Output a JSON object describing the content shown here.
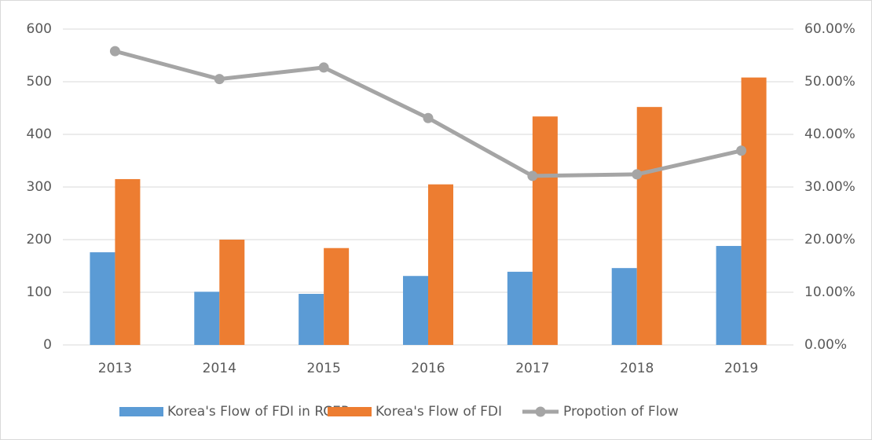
{
  "chart_data": {
    "type": "bar",
    "categories": [
      "2013",
      "2014",
      "2015",
      "2016",
      "2017",
      "2018",
      "2019"
    ],
    "series": [
      {
        "name": "Korea's Flow of FDI in RCEP",
        "color": "#5b9bd5",
        "values": [
          176,
          101,
          97,
          131,
          139,
          146,
          188
        ]
      },
      {
        "name": "Korea's Flow of FDI",
        "color": "#ed7d31",
        "values": [
          315,
          200,
          184,
          305,
          434,
          452,
          508
        ]
      },
      {
        "name": "Propotion of Flow",
        "color": "#a5a5a5",
        "type": "line",
        "axis": "y2",
        "values": [
          55.8,
          50.5,
          52.7,
          43.1,
          32.1,
          32.4,
          36.9
        ]
      }
    ],
    "ylim": [
      0,
      600
    ],
    "yticks": [
      0,
      100,
      200,
      300,
      400,
      500,
      600
    ],
    "y2lim": [
      0,
      60
    ],
    "y2ticks": [
      {
        "value": 0,
        "label": "0.00%"
      },
      {
        "value": 10,
        "label": "10.00%"
      },
      {
        "value": 20,
        "label": "20.00%"
      },
      {
        "value": 30,
        "label": "30.00%"
      },
      {
        "value": 40,
        "label": "40.00%"
      },
      {
        "value": 50,
        "label": "50.00%"
      },
      {
        "value": 60,
        "label": "60.00%"
      }
    ],
    "grid": true,
    "legend": "bottom"
  }
}
